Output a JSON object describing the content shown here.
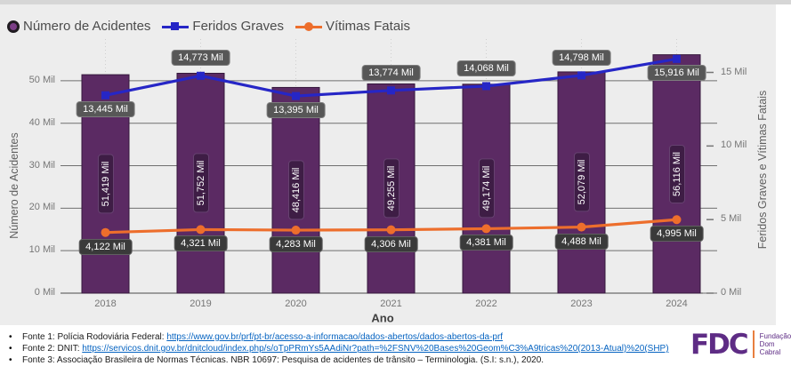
{
  "legend": {
    "items": [
      {
        "label": "Número de Acidentes",
        "marker": "circle",
        "color": "#5B2A63"
      },
      {
        "label": "Feridos Graves",
        "marker": "line-square",
        "color": "#2626C6"
      },
      {
        "label": "Vítimas Fatais",
        "marker": "line-circle",
        "color": "#ED6E2C"
      }
    ]
  },
  "chart_data": {
    "type": "bar+line combo",
    "x": [
      "2018",
      "2019",
      "2020",
      "2021",
      "2022",
      "2023",
      "2024"
    ],
    "xlabel": "Ano",
    "left_axis": {
      "title": "Número de Acidentes",
      "ylim": [
        0,
        57500
      ],
      "ticks": [
        {
          "value": 0,
          "label": "0 Mil"
        },
        {
          "value": 10000,
          "label": "10 Mil"
        },
        {
          "value": 20000,
          "label": "20 Mil"
        },
        {
          "value": 30000,
          "label": "30 Mil"
        },
        {
          "value": 40000,
          "label": "40 Mil"
        },
        {
          "value": 50000,
          "label": "50 Mil"
        }
      ]
    },
    "right_axis": {
      "title": "Feridos Graves e Vítimas Fatais",
      "ylim": [
        0,
        16600
      ],
      "ticks": [
        {
          "value": 0,
          "label": "0 Mil"
        },
        {
          "value": 5000,
          "label": "5 Mil"
        },
        {
          "value": 10000,
          "label": "10 Mil"
        },
        {
          "value": 15000,
          "label": "15 Mil"
        }
      ]
    },
    "series": [
      {
        "name": "Número de Acidentes",
        "type": "bar",
        "axis": "left",
        "color": "#5B2A63",
        "values": [
          51419,
          51752,
          48416,
          49255,
          49174,
          52079,
          56116
        ],
        "labels": [
          "51,419 Mil",
          "51,752 Mil",
          "48,416 Mil",
          "49,255 Mil",
          "49,174 Mil",
          "52,079 Mil",
          "56,116 Mil"
        ]
      },
      {
        "name": "Feridos Graves",
        "type": "line",
        "axis": "right",
        "color": "#2626C6",
        "values": [
          13445,
          14773,
          13395,
          13774,
          14068,
          14798,
          15916
        ],
        "labels": [
          "13,445 Mil",
          "14,773 Mil",
          "13,395 Mil",
          "13,774 Mil",
          "14,068 Mil",
          "14,798 Mil",
          "15,916 Mil"
        ],
        "label_pos": [
          "below",
          "above",
          "below",
          "above",
          "above",
          "above",
          "below"
        ]
      },
      {
        "name": "Vítimas Fatais",
        "type": "line",
        "axis": "right",
        "color": "#ED6E2C",
        "values": [
          4122,
          4321,
          4283,
          4306,
          4381,
          4488,
          4995
        ],
        "labels": [
          "4,122 Mil",
          "4,321 Mil",
          "4,283 Mil",
          "4,306 Mil",
          "4,381 Mil",
          "4,488 Mil",
          "4,995 Mil"
        ],
        "label_pos": [
          "below",
          "below",
          "below",
          "below",
          "below",
          "below",
          "below"
        ]
      }
    ]
  },
  "footer": {
    "sources": [
      {
        "text": "Fonte 1: Polícia Rodoviária Federal: ",
        "link": "https://www.gov.br/prf/pt-br/acesso-a-informacao/dados-abertos/dados-abertos-da-prf"
      },
      {
        "text": "Fonte 2: DNIT: ",
        "link": "https://servicos.dnit.gov.br/dnitcloud/index.php/s/oTpPRmYs5AAdiNr?path=%2FSNV%20Bases%20Geom%C3%A9tricas%20(2013-Atual)%20(SHP)"
      },
      {
        "text": "Fonte 3: Associação Brasileira de Normas Técnicas. NBR 10697: Pesquisa de acidentes de trânsito – Terminologia. (S.I: s.n.), 2020.",
        "link": ""
      }
    ],
    "logo": {
      "acronym": "FDC",
      "lines": [
        "Fundação",
        "Dom",
        "Cabral"
      ],
      "color": "#5E2C85"
    }
  }
}
